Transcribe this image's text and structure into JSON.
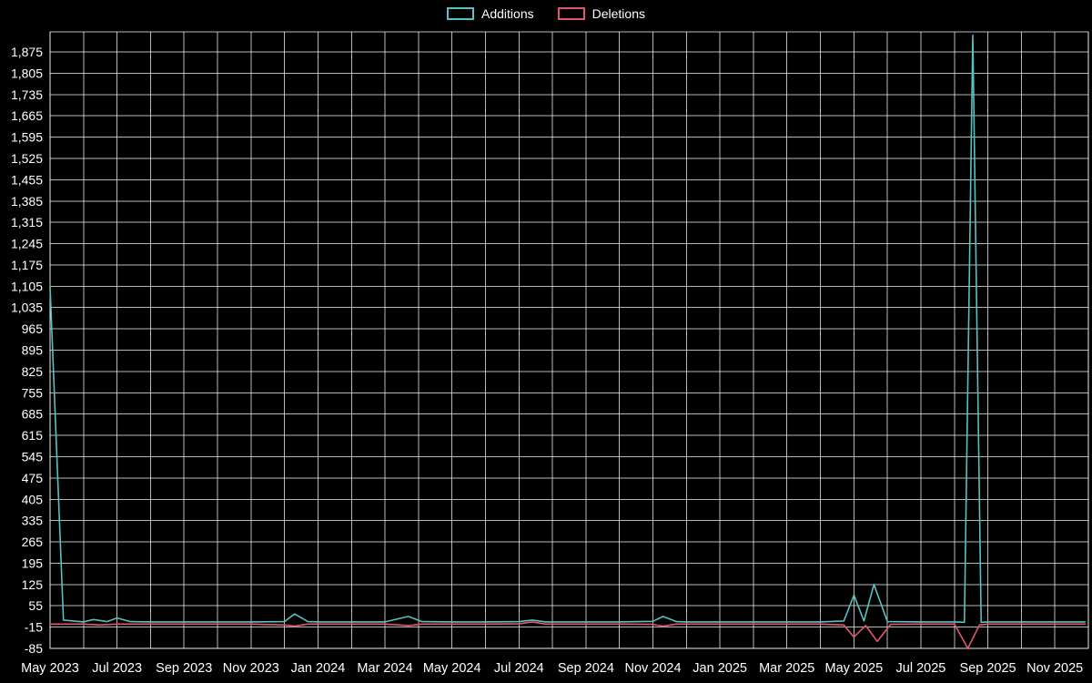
{
  "legend": {
    "items": [
      {
        "label": "Additions",
        "color": "#56c2c4"
      },
      {
        "label": "Deletions",
        "color": "#e4566e"
      }
    ]
  },
  "chart_data": {
    "type": "line",
    "title": "",
    "background": "#000000",
    "text_color": "#ffffff",
    "grid_color": "rgba(255,255,255,0.72)",
    "grid": true,
    "legend_position": "top-center",
    "x_unit": "months since May 2023",
    "x_range": [
      0,
      31
    ],
    "x_tick_positions": [
      0,
      2,
      4,
      6,
      8,
      10,
      12,
      14,
      16,
      18,
      20,
      22,
      24,
      26,
      28,
      30
    ],
    "x_tick_labels": [
      "May 2023",
      "Jul 2023",
      "Sep 2023",
      "Nov 2023",
      "Jan 2024",
      "Mar 2024",
      "May 2024",
      "Jul 2024",
      "Sep 2024",
      "Nov 2024",
      "Jan 2025",
      "Mar 2025",
      "May 2025",
      "Jul 2025",
      "Sep 2025",
      "Nov 2025"
    ],
    "ylim": [
      -85,
      1941
    ],
    "y_ticks": [
      -85,
      -15,
      55,
      125,
      195,
      265,
      335,
      405,
      475,
      545,
      615,
      685,
      755,
      825,
      895,
      965,
      1035,
      1105,
      1175,
      1245,
      1315,
      1385,
      1455,
      1525,
      1595,
      1665,
      1735,
      1805,
      1875
    ],
    "series": [
      {
        "name": "Additions",
        "color": "#56c2c4",
        "points": [
          [
            0,
            1105
          ],
          [
            0.4,
            8
          ],
          [
            1,
            2
          ],
          [
            1.3,
            10
          ],
          [
            1.7,
            3
          ],
          [
            2,
            15
          ],
          [
            2.4,
            3
          ],
          [
            3,
            2
          ],
          [
            4,
            2
          ],
          [
            5,
            2
          ],
          [
            6,
            2
          ],
          [
            7,
            3
          ],
          [
            7.3,
            28
          ],
          [
            7.7,
            3
          ],
          [
            8,
            2
          ],
          [
            9,
            2
          ],
          [
            10,
            2
          ],
          [
            10.7,
            20
          ],
          [
            11.1,
            3
          ],
          [
            12,
            2
          ],
          [
            13,
            2
          ],
          [
            14,
            3
          ],
          [
            14.4,
            8
          ],
          [
            14.8,
            2
          ],
          [
            16,
            2
          ],
          [
            17,
            2
          ],
          [
            18,
            4
          ],
          [
            18.3,
            20
          ],
          [
            18.7,
            3
          ],
          [
            19,
            2
          ],
          [
            20,
            2
          ],
          [
            21,
            2
          ],
          [
            22,
            2
          ],
          [
            23,
            2
          ],
          [
            23.7,
            5
          ],
          [
            24,
            90
          ],
          [
            24.3,
            5
          ],
          [
            24.6,
            125
          ],
          [
            25,
            3
          ],
          [
            26,
            2
          ],
          [
            27,
            2
          ],
          [
            27.3,
            1
          ],
          [
            27.55,
            1930
          ],
          [
            27.8,
            1
          ],
          [
            28,
            2
          ],
          [
            29,
            2
          ],
          [
            30,
            2
          ],
          [
            30.9,
            2
          ]
        ]
      },
      {
        "name": "Deletions",
        "color": "#e4566e",
        "points": [
          [
            0,
            -5
          ],
          [
            1,
            -5
          ],
          [
            1.5,
            -8
          ],
          [
            2,
            -5
          ],
          [
            3,
            -5
          ],
          [
            4,
            -5
          ],
          [
            5,
            -5
          ],
          [
            6,
            -5
          ],
          [
            7,
            -8
          ],
          [
            7.3,
            -12
          ],
          [
            7.7,
            -5
          ],
          [
            8,
            -5
          ],
          [
            9,
            -5
          ],
          [
            10,
            -5
          ],
          [
            10.7,
            -10
          ],
          [
            11.1,
            -5
          ],
          [
            12,
            -5
          ],
          [
            13,
            -5
          ],
          [
            14,
            -4
          ],
          [
            14.4,
            2
          ],
          [
            14.8,
            -5
          ],
          [
            16,
            -5
          ],
          [
            17,
            -5
          ],
          [
            18,
            -6
          ],
          [
            18.3,
            -12
          ],
          [
            18.7,
            -5
          ],
          [
            19,
            -5
          ],
          [
            20,
            -5
          ],
          [
            21,
            -5
          ],
          [
            22,
            -5
          ],
          [
            23,
            -5
          ],
          [
            23.7,
            -8
          ],
          [
            24,
            -48
          ],
          [
            24.35,
            -10
          ],
          [
            24.7,
            -62
          ],
          [
            25.1,
            -6
          ],
          [
            26,
            -5
          ],
          [
            27,
            -5
          ],
          [
            27.4,
            -85
          ],
          [
            27.75,
            -8
          ],
          [
            28,
            -5
          ],
          [
            29,
            -5
          ],
          [
            30,
            -5
          ],
          [
            30.9,
            -5
          ]
        ]
      }
    ]
  }
}
